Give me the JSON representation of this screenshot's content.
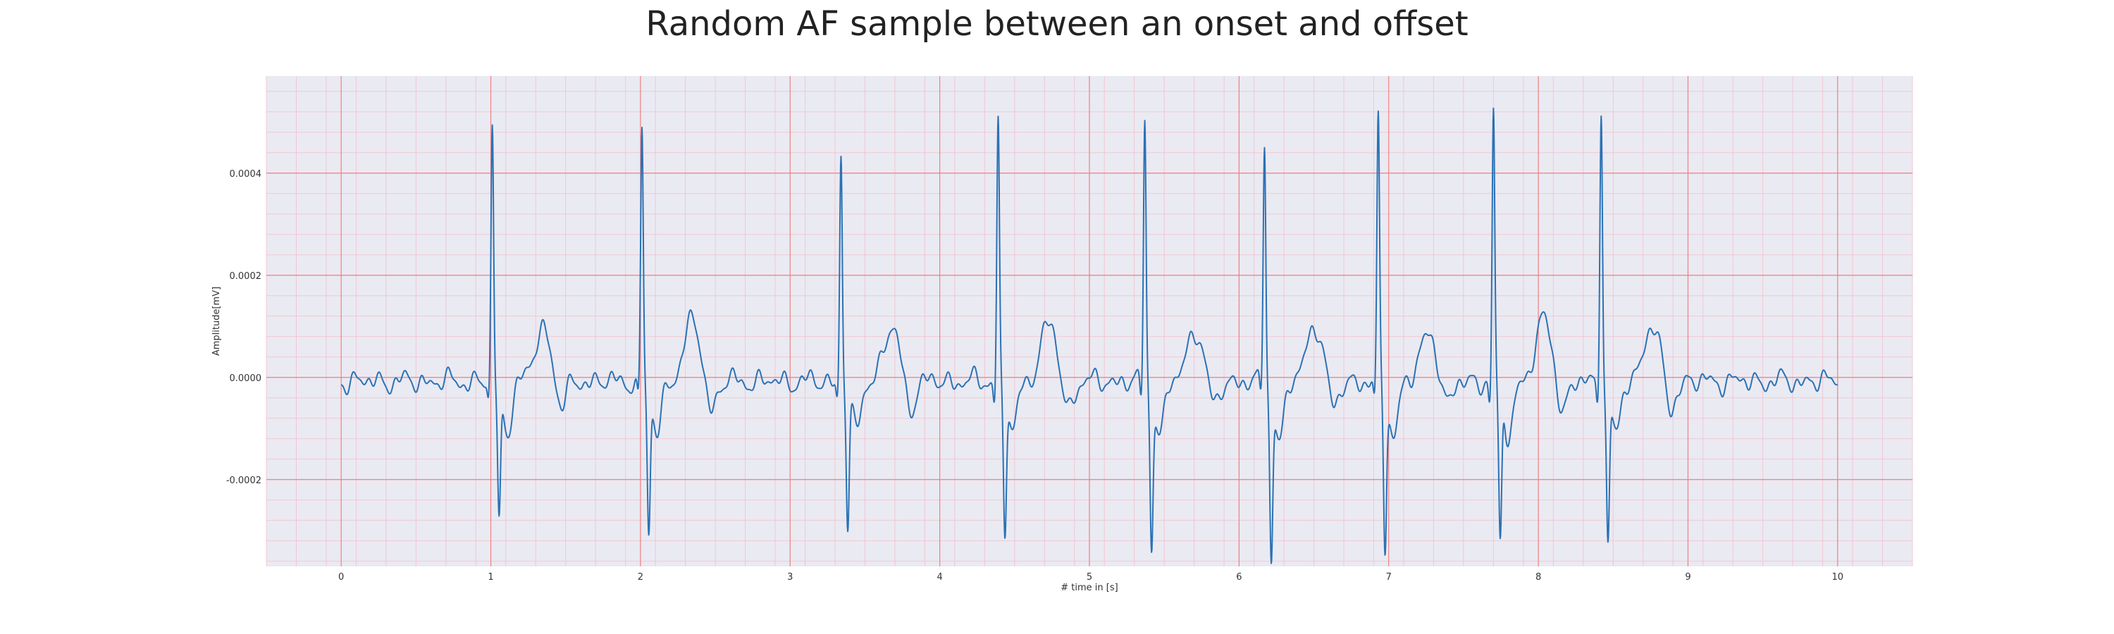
{
  "chart_data": {
    "type": "line",
    "title": "Random AF sample between an onset and offset",
    "xlabel": "# time in [s]",
    "ylabel": "Amplitude[mV]",
    "xlim": [
      -0.5,
      10.5
    ],
    "ylim": [
      -0.00037,
      0.00059
    ],
    "xticks": [
      0,
      1,
      2,
      3,
      4,
      5,
      6,
      7,
      8,
      9,
      10
    ],
    "yticks": [
      -0.0002,
      0.0,
      0.0002,
      0.0004
    ],
    "ytick_labels": [
      "-0.0002",
      "0.0000",
      "0.0002",
      "0.0004"
    ],
    "grid": true,
    "minor_grid": true,
    "colors": {
      "background": "#eaeaf2",
      "line": "#2a72b5",
      "major_grid": "#f08080",
      "minor_grid": "#f4b9c6"
    },
    "x_range": [
      0,
      10
    ],
    "baseline_noise": 1.2e-05,
    "beats": [
      {
        "t": 1.01,
        "peak": 0.000497,
        "trough": -0.000262,
        "t_wave": 0.000103
      },
      {
        "t": 2.01,
        "peak": 0.000495,
        "trough": -0.000285,
        "t_wave": 0.000118
      },
      {
        "t": 3.34,
        "peak": 0.000452,
        "trough": -0.000272,
        "t_wave": 0.000102
      },
      {
        "t": 4.39,
        "peak": 0.000513,
        "trough": -0.000277,
        "t_wave": 0.000114
      },
      {
        "t": 5.37,
        "peak": 0.000518,
        "trough": -0.000298,
        "t_wave": 0.000101
      },
      {
        "t": 6.17,
        "peak": 0.000472,
        "trough": -0.000327,
        "t_wave": 0.000112
      },
      {
        "t": 6.93,
        "peak": 0.000508,
        "trough": -0.000303,
        "t_wave": 9.3e-05
      },
      {
        "t": 7.7,
        "peak": 0.000525,
        "trough": -0.000305,
        "t_wave": 0.00012
      },
      {
        "t": 8.42,
        "peak": 0.00055,
        "trough": -0.000302,
        "t_wave": 0.00011
      }
    ]
  }
}
